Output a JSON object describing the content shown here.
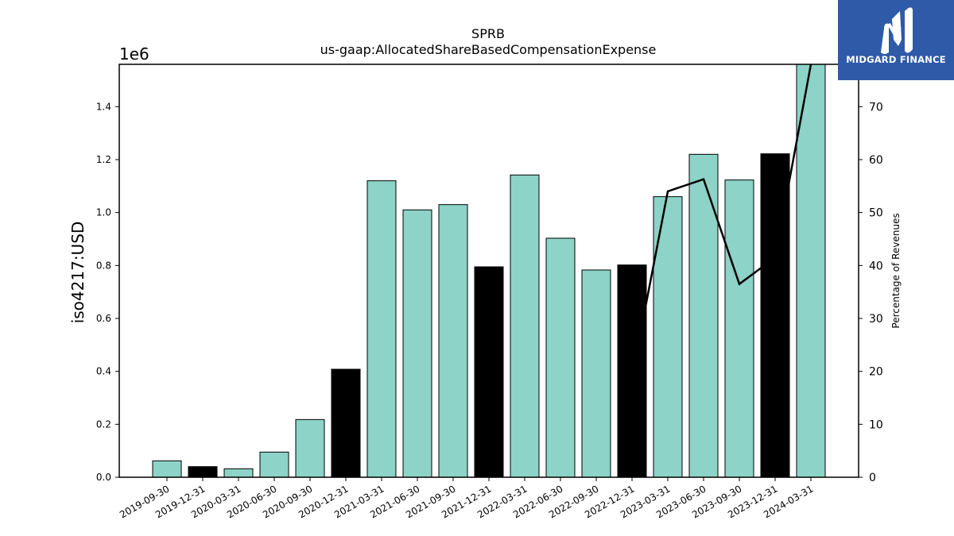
{
  "brand": {
    "name": "MIDGARD FINANCE",
    "icon": "midgard-logo-icon",
    "color": "#2f5aa8"
  },
  "chart_data": {
    "type": "bar",
    "title": "SPRB",
    "subtitle": "us-gaap:AllocatedShareBasedCompensationExpense",
    "ylabel": "iso4217:USD",
    "y2label": "Percentage of Revenues",
    "y_multiplier": "1e6",
    "ylim": [
      0,
      1560000
    ],
    "y2lim": [
      0,
      78
    ],
    "yticks": [
      "0.0",
      "0.2",
      "0.4",
      "0.6",
      "0.8",
      "1.0",
      "1.2",
      "1.4"
    ],
    "y2ticks": [
      "0",
      "10",
      "20",
      "30",
      "40",
      "50",
      "60",
      "70"
    ],
    "categories": [
      "2019-09-30",
      "2019-12-31",
      "2020-03-31",
      "2020-06-30",
      "2020-09-30",
      "2020-12-31",
      "2021-03-31",
      "2021-06-30",
      "2021-09-30",
      "2021-12-31",
      "2022-03-31",
      "2022-06-30",
      "2022-09-30",
      "2022-12-31",
      "2023-03-31",
      "2023-06-30",
      "2023-09-30",
      "2023-12-31",
      "2024-03-31"
    ],
    "values": [
      62000,
      40000,
      32000,
      95000,
      218000,
      408000,
      1120000,
      1010000,
      1030000,
      795000,
      1142000,
      903000,
      783000,
      802000,
      1060000,
      1220000,
      1123000,
      1222000,
      1560000
    ],
    "bar_colors": [
      "#8dd3c7",
      "#000000",
      "#8dd3c7",
      "#8dd3c7",
      "#8dd3c7",
      "#000000",
      "#8dd3c7",
      "#8dd3c7",
      "#8dd3c7",
      "#000000",
      "#8dd3c7",
      "#8dd3c7",
      "#8dd3c7",
      "#000000",
      "#8dd3c7",
      "#8dd3c7",
      "#8dd3c7",
      "#000000",
      "#8dd3c7"
    ],
    "line_series": {
      "color": "#000000",
      "points": [
        {
          "x": "2022-12-31",
          "y": 19
        },
        {
          "x": "2023-03-31",
          "y": 54
        },
        {
          "x": "2023-06-30",
          "y": 56.3
        },
        {
          "x": "2023-09-30",
          "y": 36.5
        },
        {
          "x": "2023-12-31",
          "y": 41.5
        },
        {
          "x": "2024-03-31",
          "y": 78
        }
      ]
    },
    "grid": false,
    "legend": "none"
  }
}
